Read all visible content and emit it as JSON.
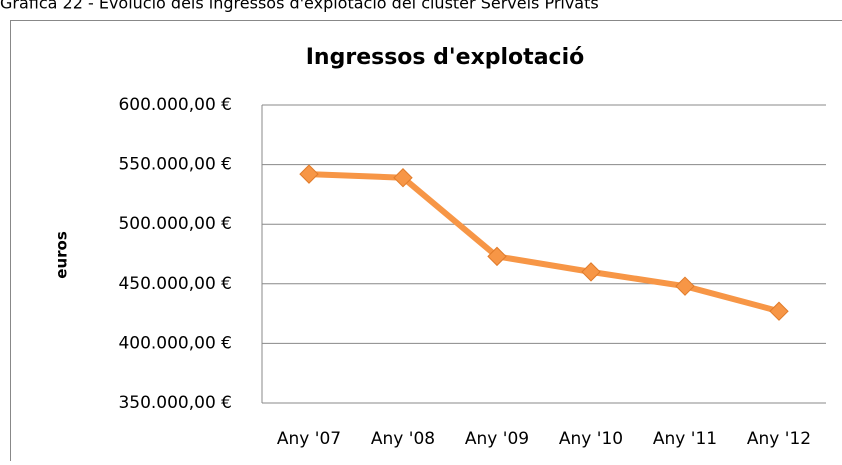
{
  "chart_data": {
    "type": "line",
    "caption": "Gràfica 22 - Evolució dels ingressos d'explotació del clúster Serveis Privats",
    "title": "Ingressos d'explotació",
    "y_label": "euros",
    "categories": [
      "Any '07",
      "Any '08",
      "Any '09",
      "Any '10",
      "Any '11",
      "Any '12"
    ],
    "series": [
      {
        "name": "Ingressos d'explotació",
        "color": "#f79646",
        "values": [
          542000,
          539000,
          473000,
          460000,
          448000,
          427000
        ]
      }
    ],
    "ylim": [
      350000,
      600000
    ],
    "yticks": [
      {
        "value": 350000,
        "label": "350.000,00 €"
      },
      {
        "value": 400000,
        "label": "400.000,00 €"
      },
      {
        "value": 450000,
        "label": "450.000,00 €"
      },
      {
        "value": 500000,
        "label": "500.000,00 €"
      },
      {
        "value": 550000,
        "label": "550.000,00 €"
      },
      {
        "value": 600000,
        "label": "600.000,00 €"
      }
    ],
    "grid": true
  }
}
